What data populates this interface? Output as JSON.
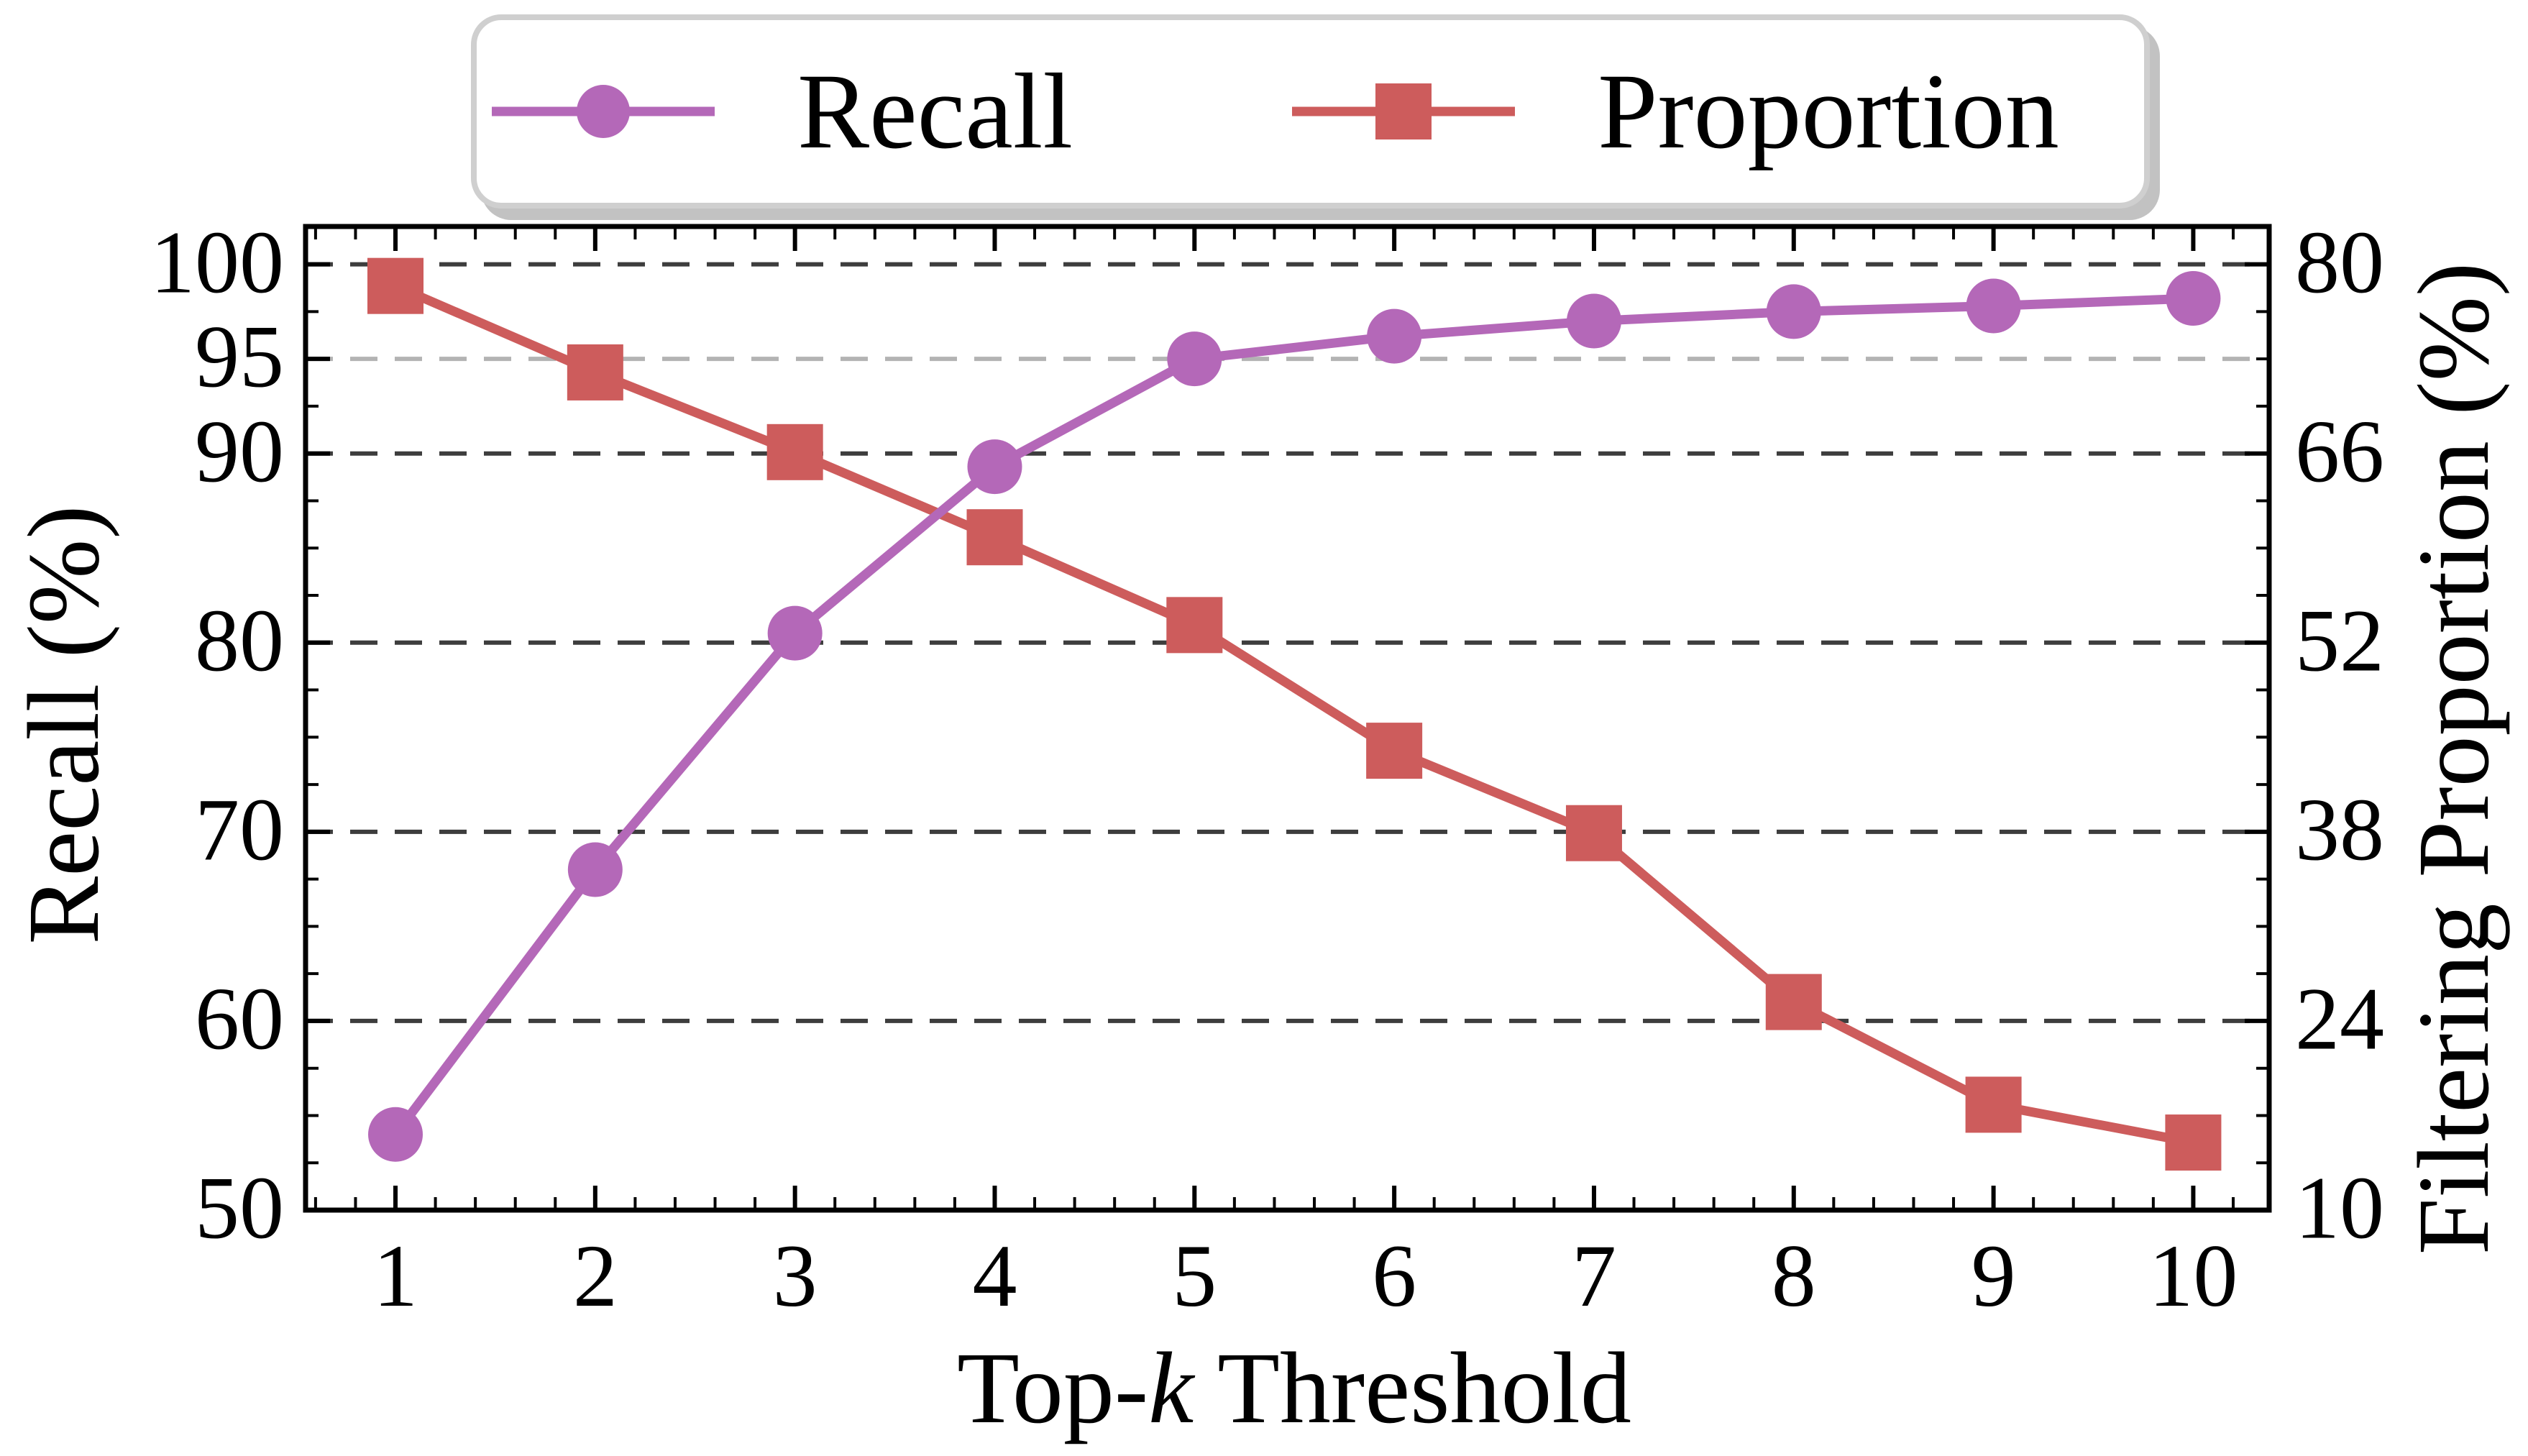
{
  "figure": {
    "background": "#ffffff",
    "legend": {
      "items": [
        {
          "label": "Recall",
          "marker": "circle",
          "color": "#b468b8"
        },
        {
          "label": "Proportion",
          "marker": "square",
          "color": "#cd5c5c"
        }
      ]
    }
  },
  "chart_data": {
    "type": "line",
    "title": "",
    "x": [
      1,
      2,
      3,
      4,
      5,
      6,
      7,
      8,
      9,
      10
    ],
    "xlabel_parts": {
      "pre": "Top-",
      "italic": "k",
      "post": " Threshold"
    },
    "series": [
      {
        "name": "Recall",
        "axis": "left",
        "marker": "circle",
        "color": "#b468b8",
        "values": [
          54.0,
          68.0,
          80.5,
          89.3,
          95.0,
          96.2,
          97.0,
          97.5,
          97.8,
          98.2
        ]
      },
      {
        "name": "Proportion",
        "axis": "right",
        "marker": "square",
        "color": "#cd5c5c",
        "values": [
          78.4,
          72.0,
          66.1,
          59.8,
          53.3,
          44.0,
          37.9,
          25.4,
          17.8,
          15.0
        ]
      }
    ],
    "left_axis": {
      "label": "Recall (%)",
      "ticks": [
        50,
        60,
        70,
        80,
        90,
        95,
        100
      ],
      "range": [
        50,
        102
      ],
      "minor_step": 2.5
    },
    "right_axis": {
      "label": "Filtering Proportion (%)",
      "ticks": [
        10,
        24,
        38,
        52,
        66,
        80
      ],
      "range": [
        10,
        82.8
      ],
      "minor_step": 3.5
    },
    "x_axis": {
      "ticks": [
        1,
        2,
        3,
        4,
        5,
        6,
        7,
        8,
        9,
        10
      ],
      "range": [
        0.55,
        10.38
      ],
      "minor_step": 0.2
    },
    "gridlines": {
      "dark_left_values": [
        60,
        70,
        80,
        90,
        100
      ],
      "light_left_values": [
        95
      ],
      "dark_color": "#3d3d3d",
      "light_color": "#b3b3b3",
      "style": "dashed"
    },
    "spine_color": "#000000",
    "legend_position": "top-center-outside"
  }
}
